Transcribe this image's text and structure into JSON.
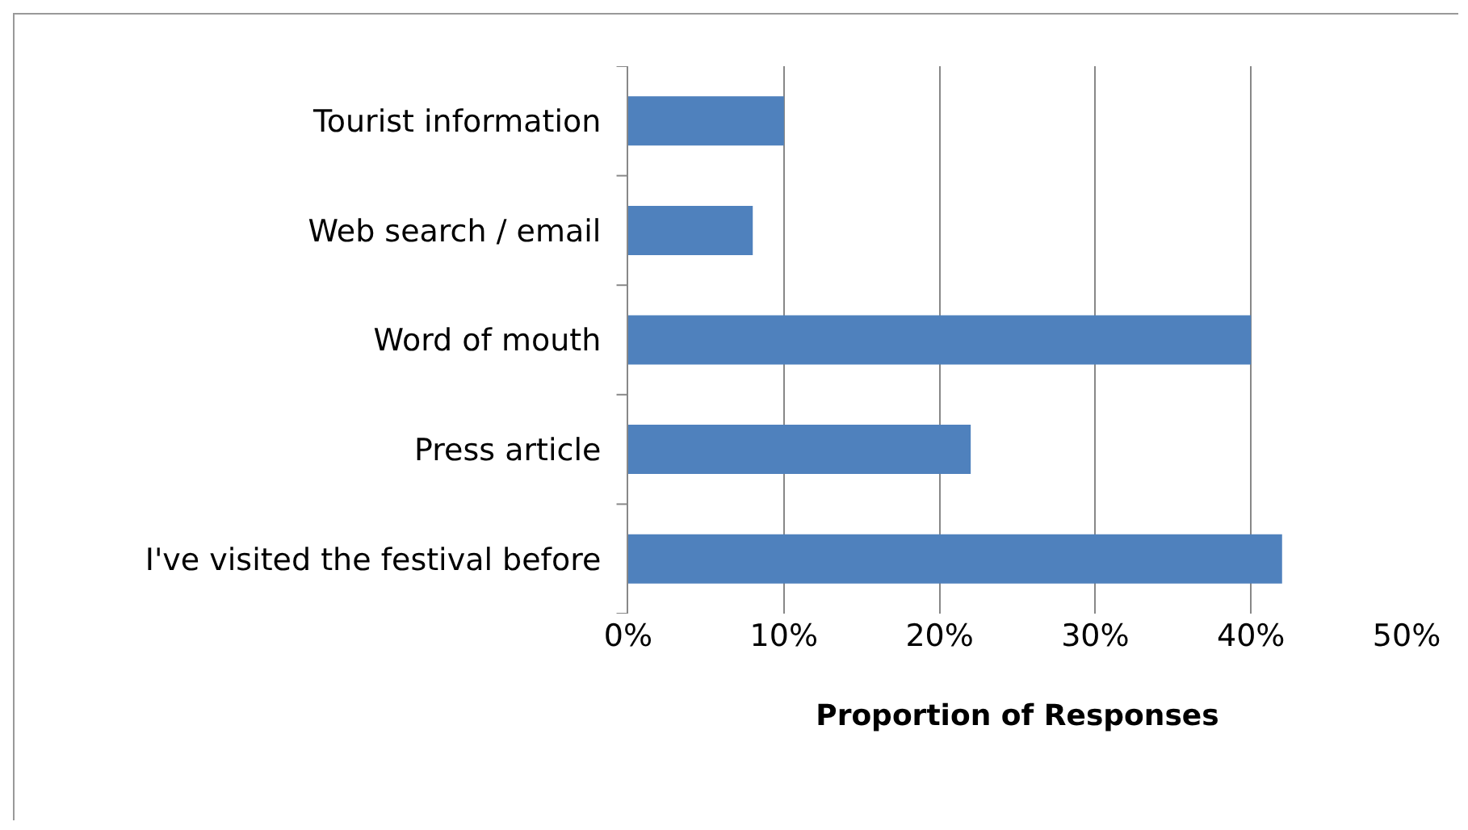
{
  "chart_data": {
    "type": "bar",
    "orientation": "horizontal",
    "xlabel": "Proportion of Responses",
    "categories": [
      "Tourist information",
      "Web search / email",
      "Word of mouth",
      "Press article",
      "I've visited the festival before"
    ],
    "values": [
      10,
      8,
      40,
      22,
      42
    ],
    "color": "#4f81bd",
    "xlim": [
      0,
      50
    ],
    "xticks": [
      {
        "value": 0,
        "label": "0%"
      },
      {
        "value": 10,
        "label": "10%"
      },
      {
        "value": 20,
        "label": "20%"
      },
      {
        "value": 30,
        "label": "30%"
      },
      {
        "value": 40,
        "label": "40%"
      },
      {
        "value": 50,
        "label": "50%"
      }
    ],
    "grid": "x"
  }
}
